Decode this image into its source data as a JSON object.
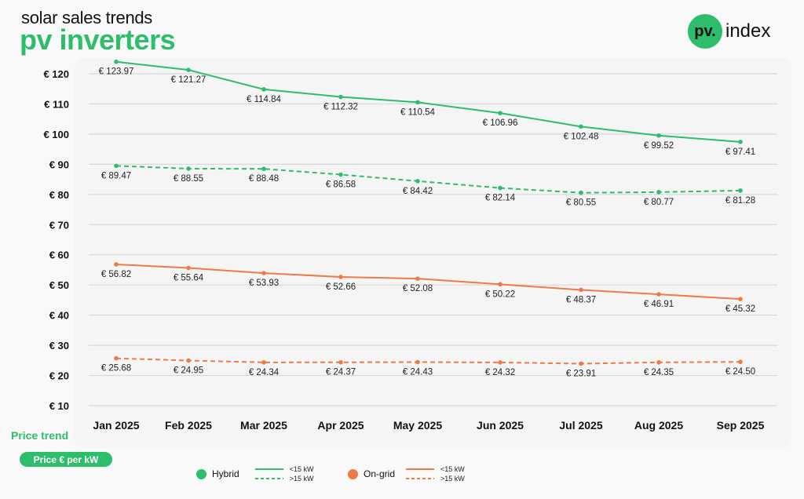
{
  "header": {
    "subtitle": "solar sales trends",
    "title": "pv inverters",
    "logo_mark": "pv.",
    "logo_text": "index"
  },
  "footer": {
    "price_trend_label": "Price trend",
    "unit_pill": "Price € per kW"
  },
  "legend": {
    "groups": [
      {
        "name": "Hybrid",
        "color": "#2ebd6b",
        "solid_label": "<15 kW",
        "dashed_label": ">15 kW"
      },
      {
        "name": "On-grid",
        "color": "#f07a45",
        "solid_label": "<15 kW",
        "dashed_label": ">15 kW"
      }
    ]
  },
  "chart_data": {
    "type": "line",
    "title": "pv inverters",
    "subtitle": "solar sales trends",
    "xlabel": "",
    "ylabel": "Price € per kW",
    "categories": [
      "Jan 2025",
      "Feb 2025",
      "Mar 2025",
      "Apr 2025",
      "May 2025",
      "Jun 2025",
      "Jul 2025",
      "Aug 2025",
      "Sep 2025"
    ],
    "yticks": [
      "€ 120",
      "€ 110",
      "€ 100",
      "€ 90",
      "€ 80",
      "€ 70",
      "€ 60",
      "€ 50",
      "€ 40",
      "€ 30",
      "€ 20",
      "€ 10"
    ],
    "ytick_values": [
      120,
      110,
      100,
      90,
      80,
      70,
      60,
      50,
      40,
      30,
      20,
      10
    ],
    "ylim": [
      10,
      120
    ],
    "grid": true,
    "legend_position": "bottom",
    "series": [
      {
        "name": "Hybrid <15 kW",
        "color": "#2ebd6b",
        "dashed": false,
        "values": [
          123.97,
          121.27,
          114.84,
          112.32,
          110.54,
          106.96,
          102.48,
          99.52,
          97.41
        ],
        "labels": [
          "€ 123.97",
          "€ 121.27",
          "€ 114.84",
          "€ 112.32",
          "€ 110.54",
          "€ 106.96",
          "€ 102.48",
          "€ 99.52",
          "€ 97.41"
        ]
      },
      {
        "name": "Hybrid >15 kW",
        "color": "#2ebd6b",
        "dashed": true,
        "values": [
          89.47,
          88.55,
          88.48,
          86.58,
          84.42,
          82.14,
          80.55,
          80.77,
          81.28
        ],
        "labels": [
          "€ 89.47",
          "€ 88.55",
          "€ 88.48",
          "€ 86.58",
          "€ 84.42",
          "€ 82.14",
          "€ 80.55",
          "€ 80.77",
          "€ 81.28"
        ]
      },
      {
        "name": "On-grid <15 kW",
        "color": "#f07a45",
        "dashed": false,
        "values": [
          56.82,
          55.64,
          53.93,
          52.66,
          52.08,
          50.22,
          48.37,
          46.91,
          45.32
        ],
        "labels": [
          "€ 56.82",
          "€ 55.64",
          "€ 53.93",
          "€ 52.66",
          "€ 52.08",
          "€ 50.22",
          "€ 48.37",
          "€ 46.91",
          "€ 45.32"
        ]
      },
      {
        "name": "On-grid >15 kW",
        "color": "#f07a45",
        "dashed": true,
        "values": [
          25.68,
          24.95,
          24.34,
          24.37,
          24.43,
          24.32,
          23.91,
          24.35,
          24.5
        ],
        "labels": [
          "€ 25.68",
          "€ 24.95",
          "€ 24.34",
          "€ 24.37",
          "€ 24.43",
          "€ 24.32",
          "€ 23.91",
          "€ 24.35",
          "€ 24.50"
        ]
      }
    ]
  }
}
